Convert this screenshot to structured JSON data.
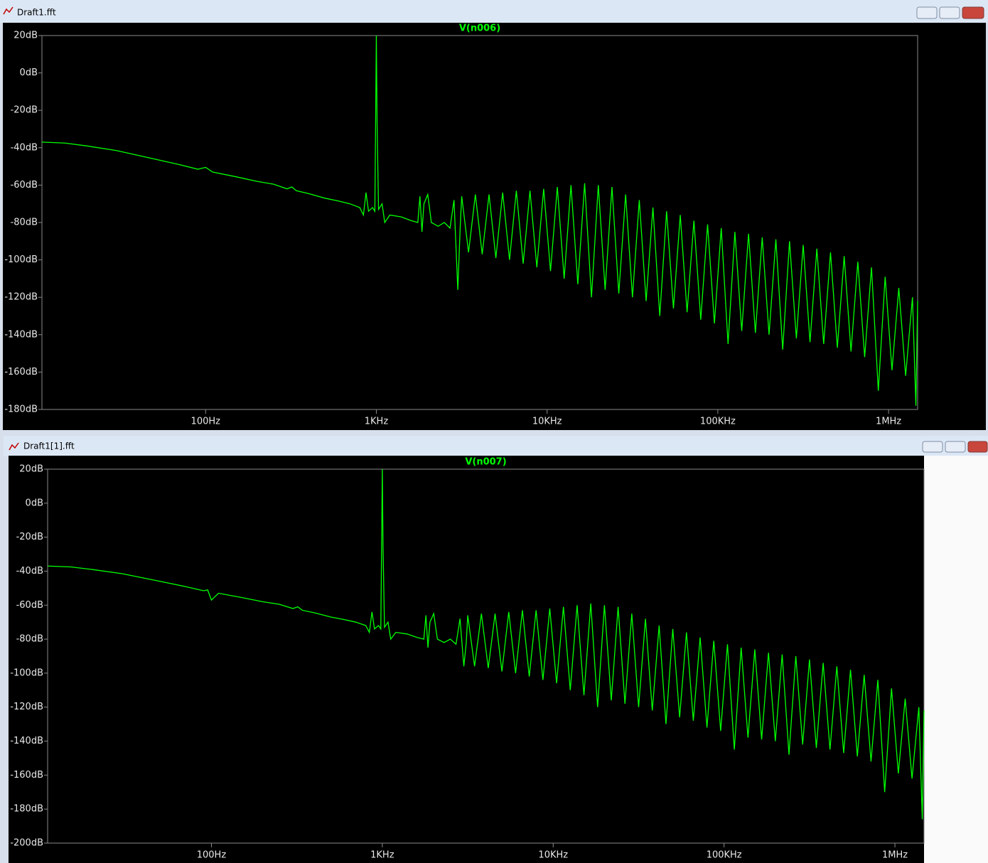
{
  "windows": [
    {
      "title": "Draft1.fft"
    },
    {
      "title": "Draft1[1].fft"
    }
  ],
  "chart_data": [
    {
      "type": "line",
      "xscale": "log",
      "grid": false,
      "xlim": [
        11,
        1480000
      ],
      "ylim": [
        -180,
        20
      ],
      "xticks": [
        {
          "value": 100,
          "label": "100Hz"
        },
        {
          "value": 1000,
          "label": "1KHz"
        },
        {
          "value": 10000,
          "label": "10KHz"
        },
        {
          "value": 100000,
          "label": "100KHz"
        },
        {
          "value": 1000000,
          "label": "1MHz"
        }
      ],
      "yticks": [
        {
          "value": 20,
          "label": "20dB"
        },
        {
          "value": 0,
          "label": "0dB"
        },
        {
          "value": -20,
          "label": "-20dB"
        },
        {
          "value": -40,
          "label": "-40dB"
        },
        {
          "value": -60,
          "label": "-60dB"
        },
        {
          "value": -80,
          "label": "-80dB"
        },
        {
          "value": -100,
          "label": "-100dB"
        },
        {
          "value": -120,
          "label": "-120dB"
        },
        {
          "value": -140,
          "label": "-140dB"
        },
        {
          "value": -160,
          "label": "-160dB"
        },
        {
          "value": -180,
          "label": "-180dB"
        }
      ],
      "x": [
        11,
        15,
        20,
        30,
        50,
        70,
        90,
        95,
        100,
        110,
        150,
        200,
        250,
        300,
        320,
        340,
        400,
        500,
        600,
        700,
        800,
        840,
        870,
        900,
        950,
        980,
        990,
        1000,
        1010,
        1030,
        1080,
        1120,
        1200,
        1400,
        1600,
        1750,
        1800,
        1850,
        1900,
        2000,
        2100,
        2300,
        2500,
        2700,
        2850,
        3000,
        3100,
        3162,
        3467,
        3802,
        4169,
        4571,
        5012,
        5495,
        6026,
        6607,
        7244,
        7943,
        8710,
        9550,
        10471,
        11482,
        12589,
        13804,
        15136,
        16596,
        18197,
        19953,
        21878,
        23988,
        26303,
        28840,
        31623,
        34674,
        38019,
        41687,
        45709,
        50119,
        54954,
        60256,
        66069,
        72444,
        79433,
        87096,
        95499,
        104713,
        114815,
        125893,
        138038,
        151356,
        165959,
        181970,
        199526,
        218776,
        239883,
        263027,
        288403,
        316228,
        346737,
        380189,
        416869,
        457088,
        501187,
        549541,
        602560,
        660693,
        724436,
        794328,
        870964,
        954993,
        1047129,
        1148154,
        1258925,
        1380384,
        1445440,
        1480000
      ],
      "series": [
        {
          "name": "V(n006)",
          "color": "#00ff00",
          "values": [
            -37,
            -37.5,
            -39,
            -41.5,
            -46,
            -49,
            -51.5,
            -51,
            -50.5,
            -53,
            -55.5,
            -58,
            -59.5,
            -62,
            -61,
            -63,
            -64.5,
            -67,
            -68.5,
            -70,
            -72,
            -76,
            -64,
            -74,
            -72,
            -74,
            -27,
            20,
            -26,
            -73,
            -70,
            -80,
            -76,
            -77,
            -79,
            -80,
            -66,
            -85,
            -70,
            -65,
            -80,
            -82,
            -80,
            -83,
            -68,
            -116,
            -82,
            -66,
            -96,
            -65,
            -97,
            -65,
            -99,
            -64,
            -100,
            -63,
            -102,
            -63,
            -104,
            -62,
            -106,
            -61,
            -110,
            -60,
            -113,
            -59,
            -120,
            -60,
            -116,
            -61,
            -118,
            -65,
            -120,
            -68,
            -122,
            -72,
            -130,
            -74,
            -126,
            -76,
            -128,
            -79,
            -132,
            -81,
            -134,
            -83,
            -145,
            -85,
            -138,
            -86,
            -139,
            -88,
            -140,
            -89,
            -148,
            -90,
            -142,
            -92,
            -144,
            -94,
            -145,
            -96,
            -147,
            -98,
            -149,
            -101,
            -152,
            -104,
            -170,
            -109,
            -159,
            -115,
            -162,
            -120,
            -178,
            -122
          ]
        }
      ]
    },
    {
      "type": "line",
      "xscale": "log",
      "grid": false,
      "xlim": [
        11,
        1480000
      ],
      "ylim": [
        -200,
        20
      ],
      "xticks": [
        {
          "value": 100,
          "label": "100Hz"
        },
        {
          "value": 1000,
          "label": "1KHz"
        },
        {
          "value": 10000,
          "label": "10KHz"
        },
        {
          "value": 100000,
          "label": "100KHz"
        },
        {
          "value": 1000000,
          "label": "1MHz"
        }
      ],
      "yticks": [
        {
          "value": 20,
          "label": "20dB"
        },
        {
          "value": 0,
          "label": "0dB"
        },
        {
          "value": -20,
          "label": "-20dB"
        },
        {
          "value": -40,
          "label": "-40dB"
        },
        {
          "value": -60,
          "label": "-60dB"
        },
        {
          "value": -80,
          "label": "-80dB"
        },
        {
          "value": -100,
          "label": "-100dB"
        },
        {
          "value": -120,
          "label": "-120dB"
        },
        {
          "value": -140,
          "label": "-140dB"
        },
        {
          "value": -160,
          "label": "-160dB"
        },
        {
          "value": -180,
          "label": "-180dB"
        },
        {
          "value": -200,
          "label": "-200dB"
        }
      ],
      "x": [
        11,
        15,
        20,
        30,
        50,
        70,
        90,
        95,
        100,
        110,
        150,
        200,
        250,
        300,
        320,
        340,
        400,
        500,
        600,
        700,
        800,
        840,
        870,
        900,
        950,
        980,
        990,
        1000,
        1010,
        1030,
        1080,
        1120,
        1200,
        1400,
        1600,
        1750,
        1800,
        1850,
        1900,
        2000,
        2100,
        2300,
        2500,
        2700,
        2850,
        3000,
        3100,
        3162,
        3467,
        3802,
        4169,
        4571,
        5012,
        5495,
        6026,
        6607,
        7244,
        7943,
        8710,
        9550,
        10471,
        11482,
        12589,
        13804,
        15136,
        16596,
        18197,
        19953,
        21878,
        23988,
        26303,
        28840,
        31623,
        34674,
        38019,
        41687,
        45709,
        50119,
        54954,
        60256,
        66069,
        72444,
        79433,
        87096,
        95499,
        104713,
        114815,
        125893,
        138038,
        151356,
        165959,
        181970,
        199526,
        218776,
        239883,
        263027,
        288403,
        316228,
        346737,
        380189,
        416869,
        457088,
        501187,
        549541,
        602560,
        660693,
        724436,
        794328,
        870964,
        954993,
        1047129,
        1148154,
        1258925,
        1380384,
        1445440,
        1480000
      ],
      "series": [
        {
          "name": "V(n007)",
          "color": "#00ff00",
          "values": [
            -37,
            -37.5,
            -39,
            -41.5,
            -46,
            -49,
            -51.5,
            -51,
            -57,
            -53,
            -55.5,
            -58,
            -59.5,
            -62,
            -61,
            -63,
            -64.5,
            -67,
            -68.5,
            -70,
            -72,
            -76,
            -64,
            -74,
            -72,
            -74,
            -27,
            20,
            -26,
            -73,
            -70,
            -80,
            -76,
            -77,
            -79,
            -80,
            -66,
            -85,
            -70,
            -65,
            -80,
            -82,
            -80,
            -83,
            -68,
            -96,
            -82,
            -66,
            -96,
            -65,
            -97,
            -65,
            -99,
            -64,
            -100,
            -63,
            -102,
            -63,
            -104,
            -62,
            -106,
            -61,
            -110,
            -60,
            -113,
            -59,
            -120,
            -60,
            -116,
            -61,
            -118,
            -65,
            -120,
            -68,
            -122,
            -72,
            -130,
            -74,
            -126,
            -76,
            -128,
            -79,
            -132,
            -81,
            -134,
            -83,
            -145,
            -85,
            -138,
            -86,
            -139,
            -88,
            -140,
            -89,
            -148,
            -90,
            -142,
            -92,
            -144,
            -94,
            -145,
            -96,
            -147,
            -98,
            -149,
            -101,
            -152,
            -104,
            -170,
            -109,
            -159,
            -115,
            -162,
            -120,
            -186,
            -122
          ]
        }
      ]
    }
  ]
}
